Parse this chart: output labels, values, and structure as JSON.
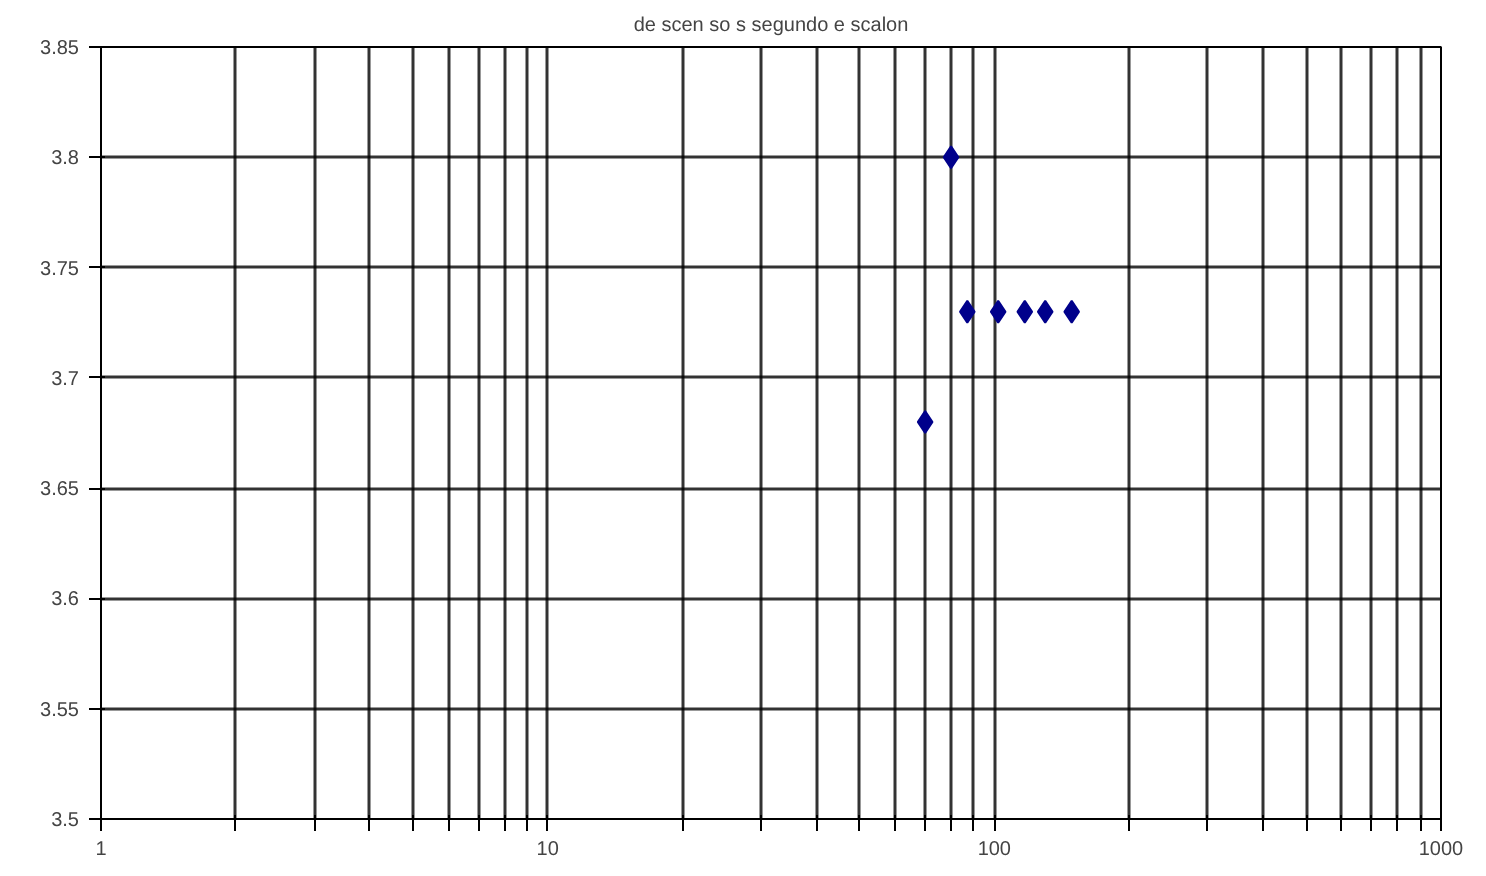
{
  "chart_data": {
    "type": "scatter",
    "title": "de scen so s segundo e scalon",
    "x": [
      70,
      80,
      87,
      102,
      117,
      130,
      149
    ],
    "values": [
      3.68,
      3.8,
      3.73,
      3.73,
      3.73,
      3.73,
      3.73
    ],
    "color": "#00008b",
    "marker": "diamond",
    "log": "x",
    "xlim": [
      1,
      1000
    ],
    "xticks": [
      1,
      {
        "value": 2,
        "label": null
      },
      {
        "value": 3,
        "label": null
      },
      {
        "value": 4,
        "label": null
      },
      {
        "value": 5,
        "label": null
      },
      {
        "value": 6,
        "label": null
      },
      {
        "value": 7,
        "label": null
      },
      {
        "value": 8,
        "label": null
      },
      {
        "value": 9,
        "label": null
      },
      10,
      {
        "value": 20,
        "label": null
      },
      {
        "value": 30,
        "label": null
      },
      {
        "value": 40,
        "label": null
      },
      {
        "value": 50,
        "label": null
      },
      {
        "value": 60,
        "label": null
      },
      {
        "value": 70,
        "label": null
      },
      {
        "value": 80,
        "label": null
      },
      {
        "value": 90,
        "label": null
      },
      100,
      {
        "value": 200,
        "label": null
      },
      {
        "value": 300,
        "label": null
      },
      {
        "value": 400,
        "label": null
      },
      {
        "value": 500,
        "label": null
      },
      {
        "value": 600,
        "label": null
      },
      {
        "value": 700,
        "label": null
      },
      {
        "value": 800,
        "label": null
      },
      {
        "value": 900,
        "label": null
      },
      1000
    ],
    "ylim": [
      3.5,
      3.85
    ],
    "yticks": [
      3.5,
      3.55,
      3.6,
      3.65,
      3.7,
      3.75,
      3.8,
      3.85
    ],
    "grid": true
  }
}
